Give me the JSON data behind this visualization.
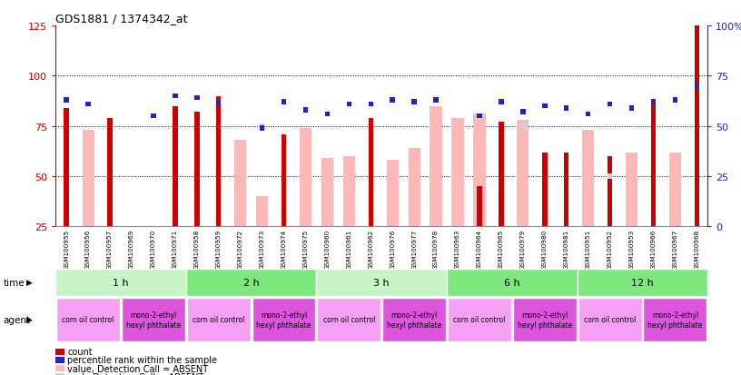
{
  "title": "GDS1881 / 1374342_at",
  "samples": [
    "GSM100955",
    "GSM100956",
    "GSM100957",
    "GSM100969",
    "GSM100970",
    "GSM100971",
    "GSM100958",
    "GSM100959",
    "GSM100972",
    "GSM100973",
    "GSM100974",
    "GSM100975",
    "GSM100960",
    "GSM100961",
    "GSM100962",
    "GSM100976",
    "GSM100977",
    "GSM100978",
    "GSM100963",
    "GSM100964",
    "GSM100965",
    "GSM100979",
    "GSM100980",
    "GSM100981",
    "GSM100951",
    "GSM100952",
    "GSM100953",
    "GSM100966",
    "GSM100967",
    "GSM100968"
  ],
  "count_values": [
    84,
    0,
    79,
    0,
    0,
    85,
    82,
    90,
    0,
    0,
    71,
    0,
    0,
    0,
    79,
    0,
    0,
    0,
    0,
    45,
    77,
    0,
    62,
    62,
    0,
    60,
    0,
    86,
    0,
    125
  ],
  "percentile_values": [
    63,
    61,
    0,
    0,
    55,
    65,
    64,
    62,
    0,
    49,
    62,
    58,
    56,
    61,
    61,
    63,
    62,
    63,
    0,
    55,
    62,
    57,
    60,
    59,
    56,
    61,
    59,
    62,
    63,
    70
  ],
  "absent_count_values": [
    0,
    73,
    0,
    0,
    0,
    0,
    0,
    0,
    68,
    40,
    0,
    74,
    59,
    60,
    0,
    58,
    64,
    85,
    79,
    81,
    0,
    78,
    0,
    0,
    73,
    0,
    62,
    0,
    62,
    0
  ],
  "absent_rank_values": [
    0,
    0,
    0,
    0,
    0,
    0,
    0,
    0,
    0,
    50,
    0,
    58,
    0,
    0,
    0,
    0,
    0,
    0,
    0,
    0,
    0,
    50,
    0,
    0,
    0,
    25,
    0,
    0,
    0,
    0
  ],
  "time_groups": [
    {
      "label": "1 h",
      "start": 0,
      "end": 6,
      "color": "#c8f5c8"
    },
    {
      "label": "2 h",
      "start": 6,
      "end": 12,
      "color": "#7de87d"
    },
    {
      "label": "3 h",
      "start": 12,
      "end": 18,
      "color": "#c8f5c8"
    },
    {
      "label": "6 h",
      "start": 18,
      "end": 24,
      "color": "#7de87d"
    },
    {
      "label": "12 h",
      "start": 24,
      "end": 30,
      "color": "#7de87d"
    }
  ],
  "agent_groups": [
    {
      "label": "corn oil control",
      "start": 0,
      "end": 3,
      "color": "#f5a0f5"
    },
    {
      "label": "mono-2-ethyl\nhexyl phthalate",
      "start": 3,
      "end": 6,
      "color": "#dd55dd"
    },
    {
      "label": "corn oil control",
      "start": 6,
      "end": 9,
      "color": "#f5a0f5"
    },
    {
      "label": "mono-2-ethyl\nhexyl phthalate",
      "start": 9,
      "end": 12,
      "color": "#dd55dd"
    },
    {
      "label": "corn oil control",
      "start": 12,
      "end": 15,
      "color": "#f5a0f5"
    },
    {
      "label": "mono-2-ethyl\nhexyl phthalate",
      "start": 15,
      "end": 18,
      "color": "#dd55dd"
    },
    {
      "label": "corn oil control",
      "start": 18,
      "end": 21,
      "color": "#f5a0f5"
    },
    {
      "label": "mono-2-ethyl\nhexyl phthalate",
      "start": 21,
      "end": 24,
      "color": "#dd55dd"
    },
    {
      "label": "corn oil control",
      "start": 24,
      "end": 27,
      "color": "#f5a0f5"
    },
    {
      "label": "mono-2-ethyl\nhexyl phthalate",
      "start": 27,
      "end": 30,
      "color": "#dd55dd"
    }
  ],
  "ylim_left": [
    25,
    125
  ],
  "ylim_right": [
    0,
    100
  ],
  "yticks_left": [
    25,
    50,
    75,
    100,
    125
  ],
  "yticks_right": [
    0,
    25,
    50,
    75,
    100
  ],
  "ytick_labels_right": [
    "0",
    "25",
    "50",
    "75",
    "100%"
  ],
  "hlines": [
    50,
    75,
    100
  ],
  "color_count": "#cc0000",
  "color_percentile": "#2222cc",
  "color_absent_count": "#ffb8b8",
  "color_absent_rank": "#c8ccff",
  "bar_width": 0.55,
  "plot_bg": "#ffffff",
  "tick_bg": "#d8d8d8"
}
